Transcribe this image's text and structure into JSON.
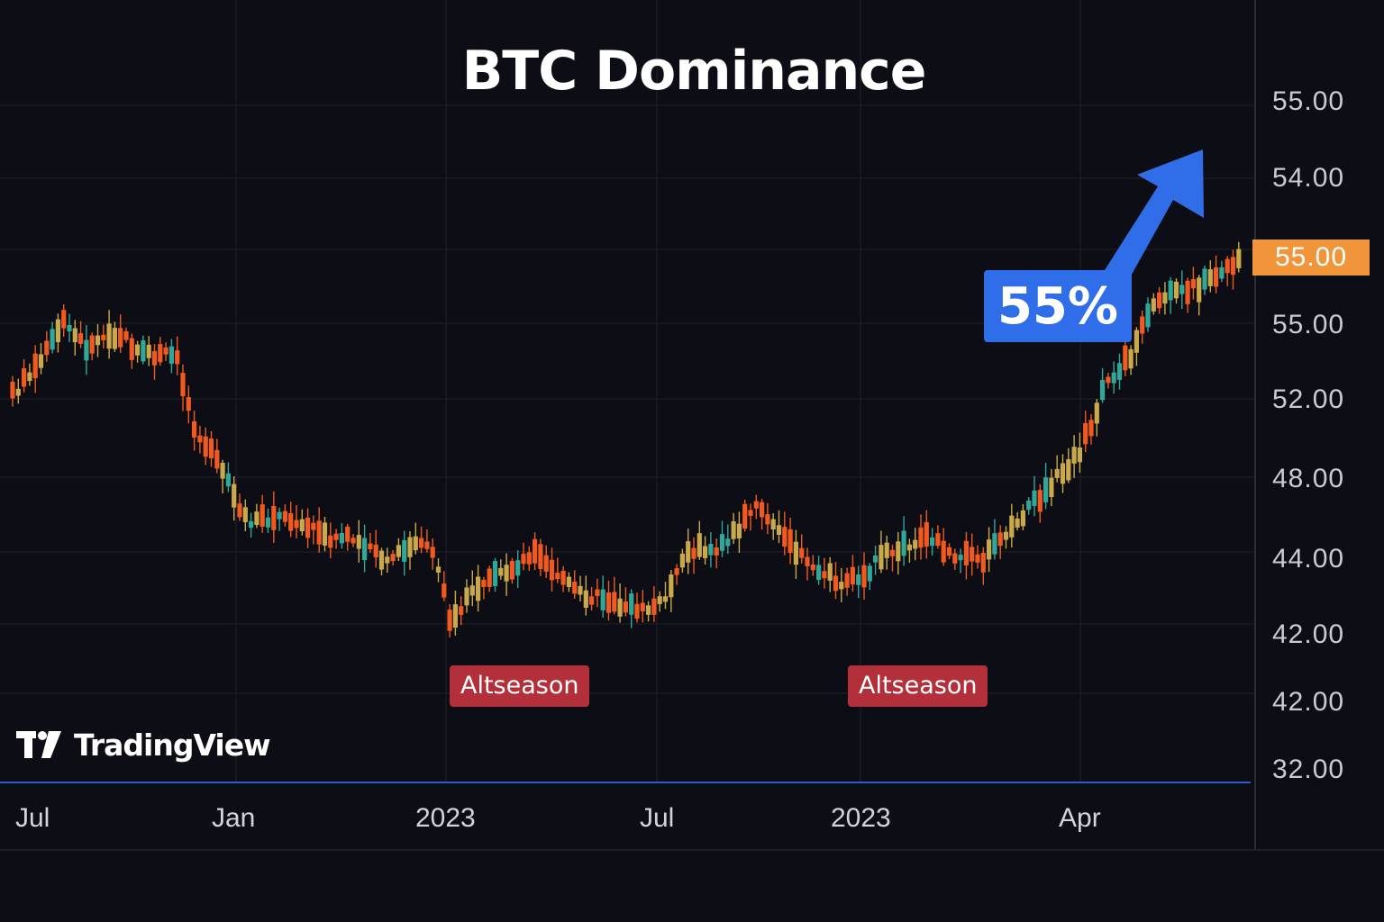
{
  "chart_data": {
    "type": "candlestick",
    "title": "BTC Dominance",
    "y_axis_labels": [
      "55.00",
      "54.00",
      "55.00",
      "52.00",
      "48.00",
      "44.00",
      "42.00",
      "42.00",
      "32.00"
    ],
    "x_axis_labels": [
      "Jul",
      "Jan",
      "2023",
      "Jul",
      "2023",
      "Apr"
    ],
    "current_price_label": "55.00",
    "annotations": [
      {
        "text": "Altseason",
        "near_x_label": "2023"
      },
      {
        "text": "Altseason",
        "near_x_label": "2023"
      }
    ],
    "callout": {
      "text": "55%"
    },
    "brand": "TradingView",
    "colors": {
      "up": "#c9a94a",
      "up_alt": "#2fa89a",
      "down": "#f2591f",
      "price_tag": "#f0953a",
      "arrow": "#2f6ee8",
      "badge": "#b3303b"
    }
  }
}
